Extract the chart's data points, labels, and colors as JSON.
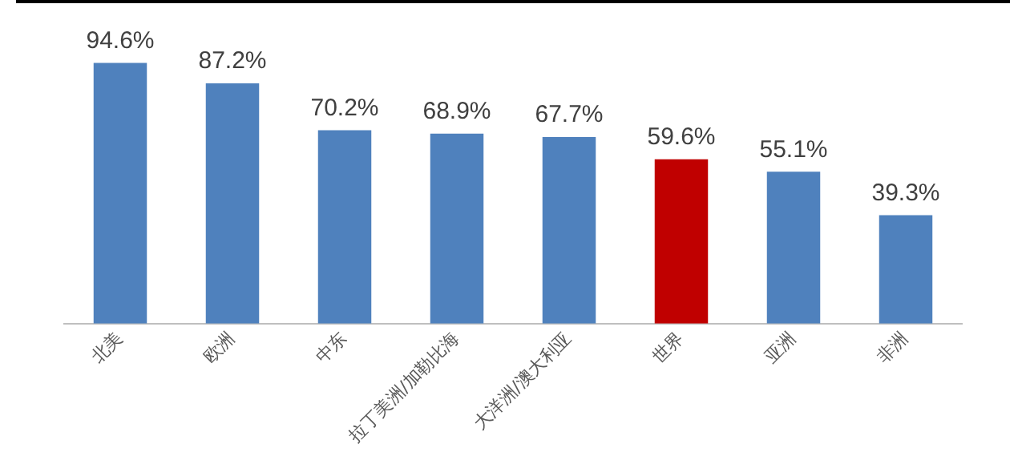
{
  "chart_data": {
    "type": "bar",
    "categories": [
      "北美",
      "欧洲",
      "中东",
      "拉丁美洲/加勒比海",
      "大洋洲/澳大利亚",
      "世界",
      "亚洲",
      "非洲"
    ],
    "values": [
      94.6,
      87.2,
      70.2,
      68.9,
      67.7,
      59.6,
      55.1,
      39.3
    ],
    "colors": [
      "#4f81bd",
      "#4f81bd",
      "#4f81bd",
      "#4f81bd",
      "#4f81bd",
      "#c00000",
      "#4f81bd",
      "#4f81bd"
    ],
    "value_labels": [
      "94.6%",
      "87.2%",
      "70.2%",
      "68.9%",
      "67.7%",
      "59.6%",
      "55.1%",
      "39.3%"
    ],
    "grid": false,
    "legend": false
  }
}
